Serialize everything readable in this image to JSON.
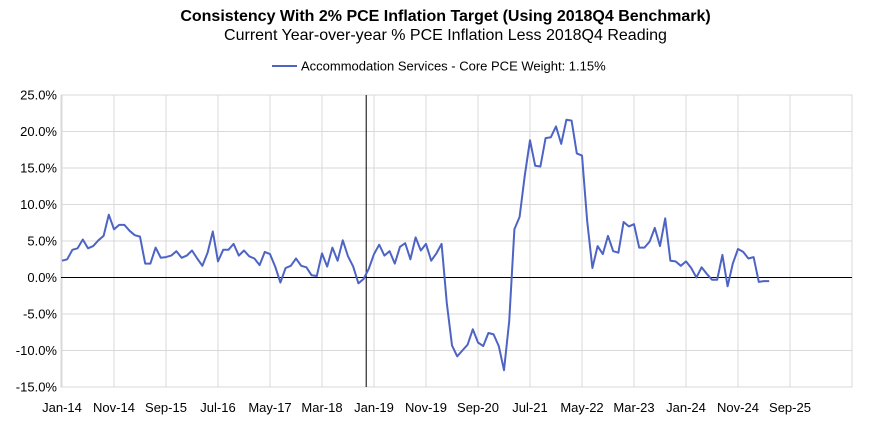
{
  "chart_data": {
    "type": "line",
    "title": "Consistency With 2% PCE Inflation Target (Using 2018Q4 Benchmark)",
    "subtitle": "Current Year-over-year % PCE Inflation Less 2018Q4 Reading",
    "legend": "top-center",
    "grid": true,
    "ylim": [
      -15,
      25
    ],
    "yticks": [
      -15,
      -10,
      -5,
      0,
      5,
      10,
      15,
      20,
      25
    ],
    "ytick_labels": [
      "-15.0%",
      "-10.0%",
      "-5.0%",
      "0.0%",
      "5.0%",
      "10.0%",
      "15.0%",
      "20.0%",
      "25.0%"
    ],
    "xtick_labels": [
      "Jan-14",
      "Nov-14",
      "Sep-15",
      "Jul-16",
      "May-17",
      "Mar-18",
      "Jan-19",
      "Nov-19",
      "Sep-20",
      "Jul-21",
      "May-22",
      "Mar-23",
      "Jan-24",
      "Nov-24",
      "Sep-25"
    ],
    "benchmark_label": "2018Q4",
    "series": [
      {
        "name": "Accommodation Services - Core PCE Weight: 1.15%",
        "color": "#4e64c4",
        "values": [
          2.3,
          2.5,
          3.8,
          4.0,
          5.2,
          4.0,
          4.3,
          5.1,
          5.7,
          8.6,
          6.6,
          7.2,
          7.2,
          6.4,
          5.8,
          5.6,
          1.9,
          1.9,
          4.1,
          2.7,
          2.8,
          3.0,
          3.6,
          2.7,
          3.0,
          3.7,
          2.6,
          1.6,
          3.4,
          6.3,
          2.2,
          3.8,
          3.8,
          4.6,
          3.0,
          3.7,
          2.9,
          2.6,
          1.7,
          3.5,
          3.2,
          1.5,
          -0.7,
          1.3,
          1.6,
          2.6,
          1.6,
          1.4,
          0.3,
          0.2,
          3.3,
          1.5,
          4.1,
          2.3,
          5.1,
          2.9,
          1.5,
          -0.8,
          -0.2,
          1.2,
          3.2,
          4.5,
          3.0,
          3.6,
          1.9,
          4.2,
          4.7,
          2.5,
          5.5,
          3.7,
          4.6,
          2.3,
          3.3,
          4.6,
          -3.5,
          -9.3,
          -10.8,
          -10.0,
          -9.2,
          -7.1,
          -8.9,
          -9.4,
          -7.6,
          -7.8,
          -9.4,
          -12.7,
          -6.0,
          6.6,
          8.3,
          14.0,
          18.8,
          15.3,
          15.2,
          19.1,
          19.2,
          20.7,
          18.3,
          21.6,
          21.5,
          17.0,
          16.7,
          7.7,
          1.3,
          4.3,
          3.2,
          5.7,
          3.6,
          3.4,
          7.6,
          7.0,
          7.3,
          4.1,
          4.1,
          4.9,
          6.8,
          4.3,
          8.1,
          2.3,
          2.2,
          1.6,
          2.2,
          1.3,
          0.0,
          1.4,
          0.5,
          -0.3,
          -0.3,
          3.1,
          -1.2,
          1.9,
          3.9,
          3.5,
          2.6,
          2.8,
          -0.6,
          -0.5,
          -0.5
        ]
      }
    ]
  }
}
